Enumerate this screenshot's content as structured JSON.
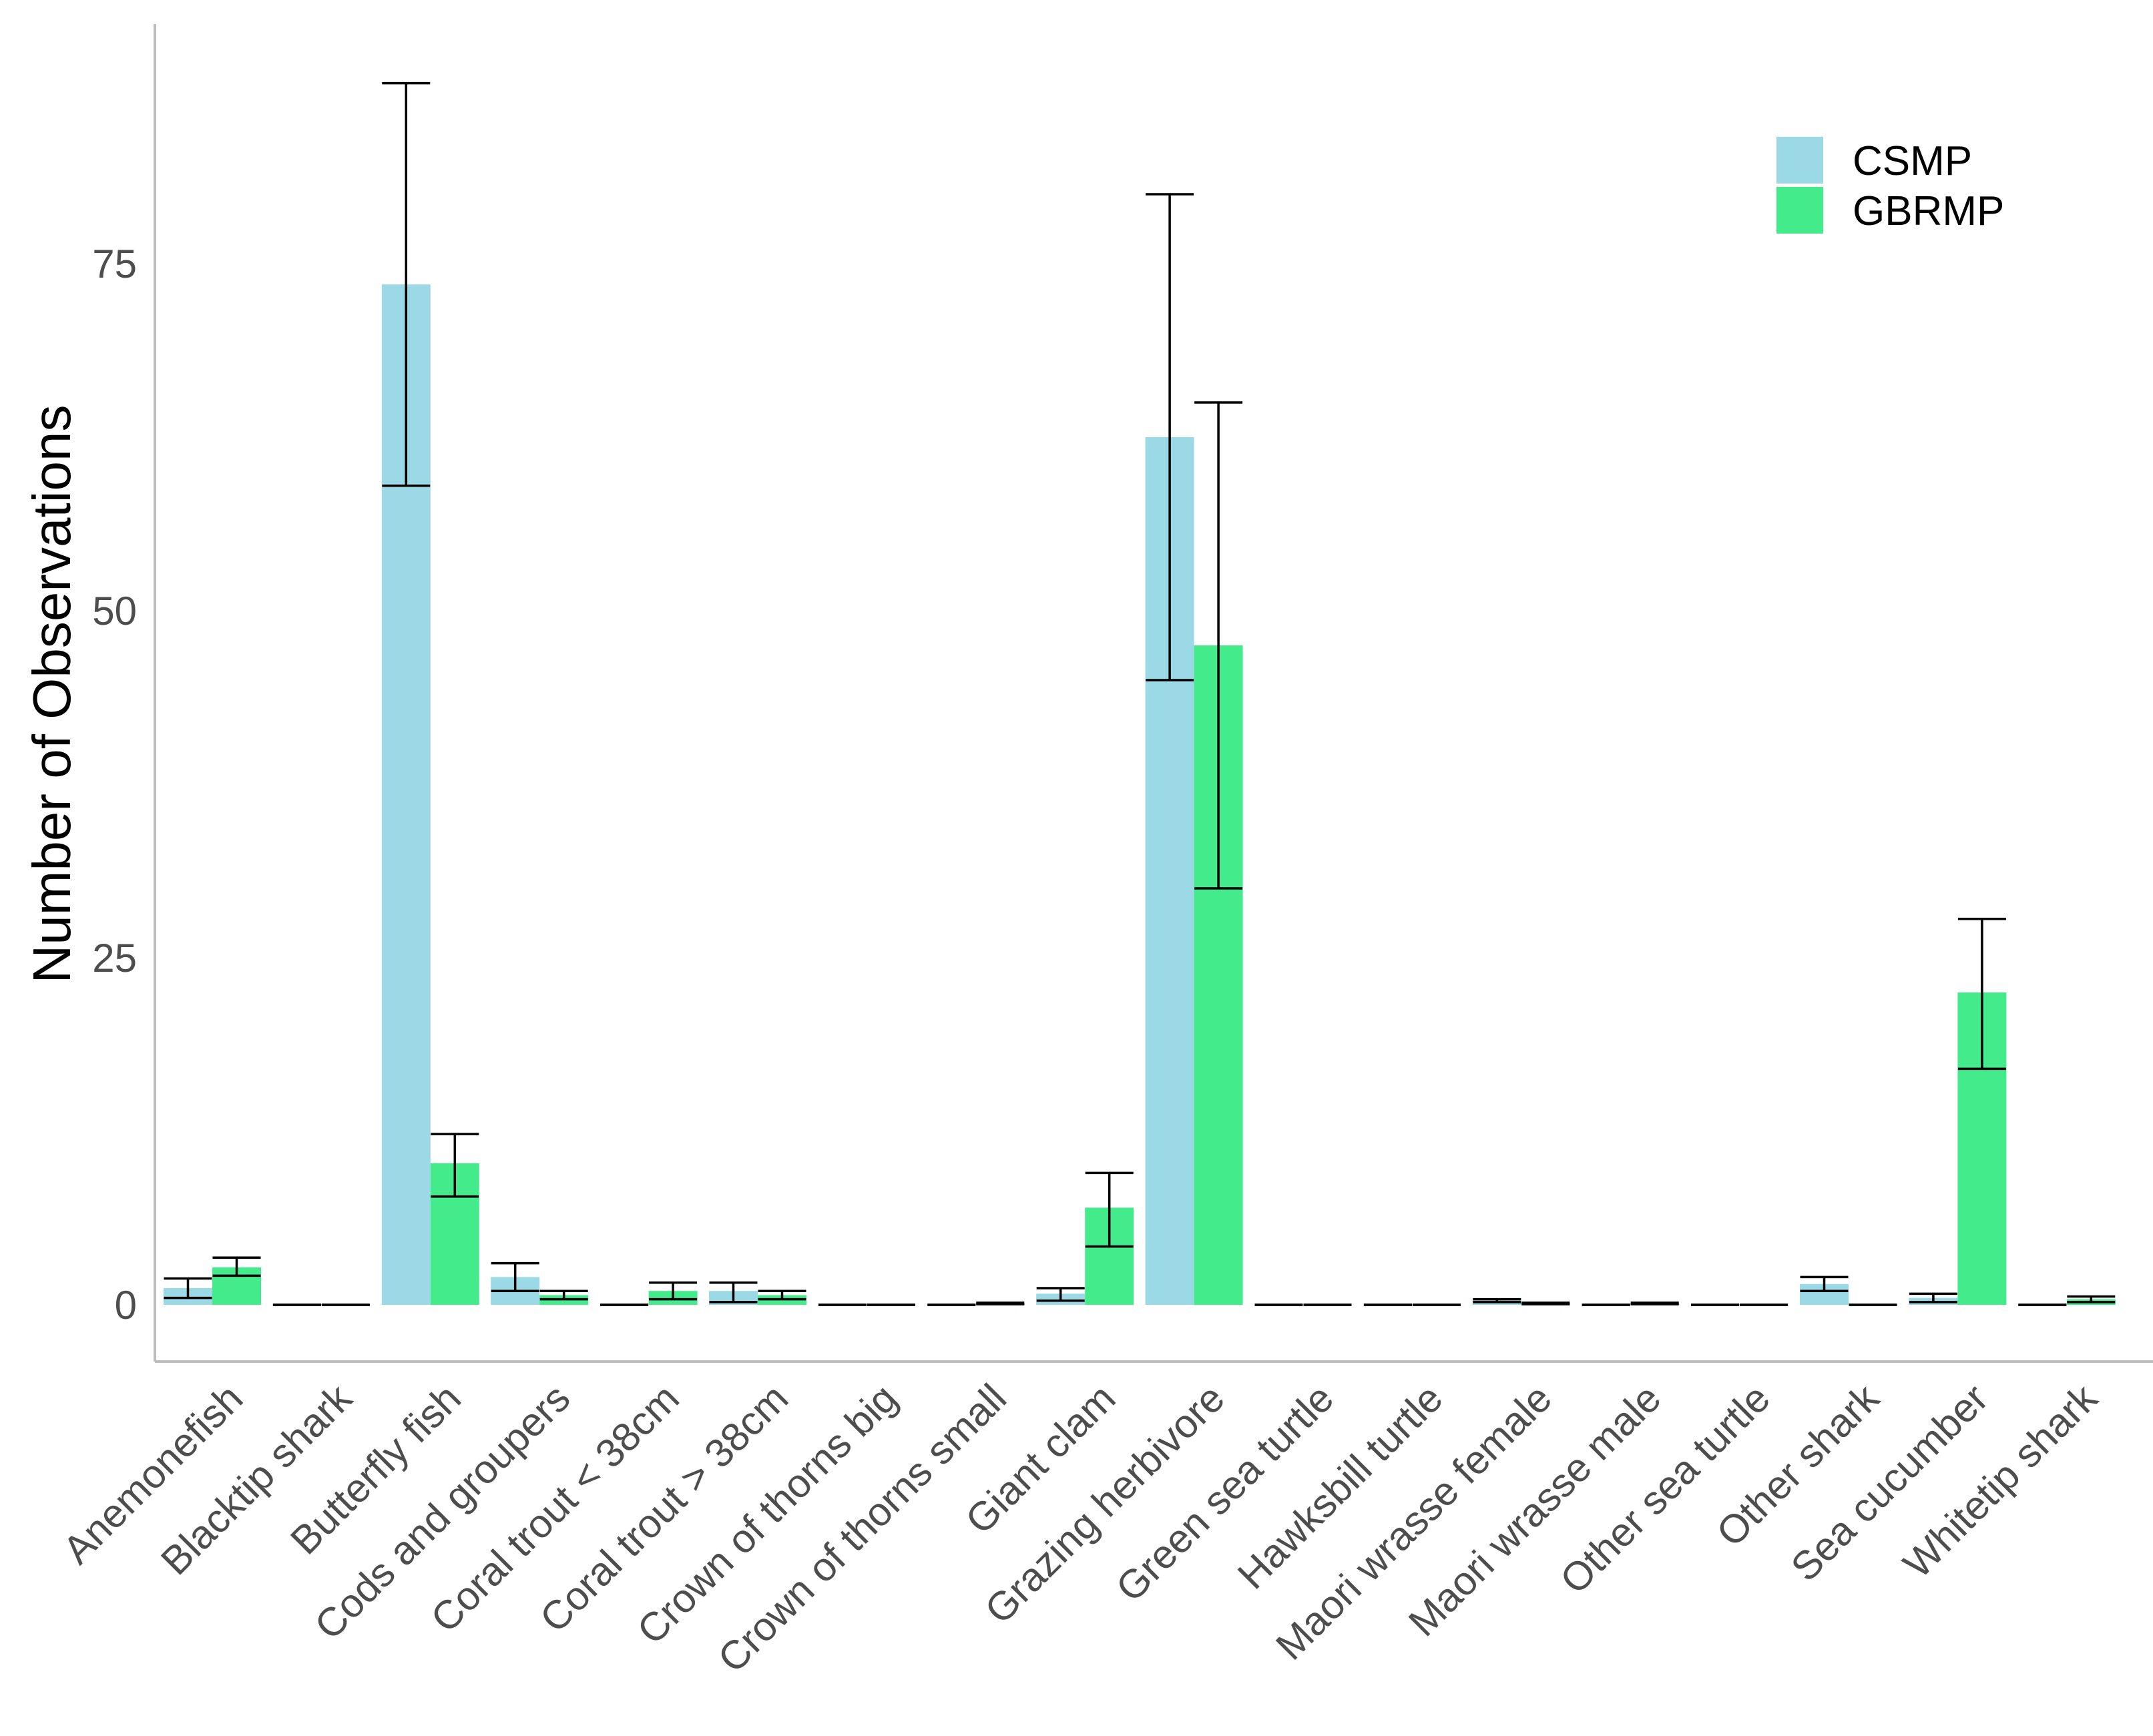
{
  "chart_data": {
    "type": "bar",
    "title": "",
    "xlabel": "",
    "ylabel": "Number of Observations",
    "ylim": [
      -4.2,
      92
    ],
    "yticks": [
      0,
      25,
      50,
      75
    ],
    "grid": false,
    "legend_position": "top-right",
    "categories": [
      "Anemonefish",
      "Blacktip shark",
      "Butterfly fish",
      "Cods and groupers",
      "Coral trout < 38cm",
      "Coral trout > 38cm",
      "Crown of thorns big",
      "Crown of thorns small",
      "Giant clam",
      "Grazing herbivore",
      "Green sea turtle",
      "Hawksbill turtle",
      "Maori wrasse female",
      "Maori wrasse male",
      "Other sea turtle",
      "Other shark",
      "Sea cucumber",
      "Whitetip shark"
    ],
    "series": [
      {
        "name": "CSMP",
        "color": "#9ad9e5",
        "values": [
          1.2,
          0,
          73.5,
          2.0,
          0,
          1.0,
          0,
          0,
          0.8,
          62.5,
          0,
          0,
          0.3,
          0,
          0,
          1.5,
          0.5,
          0
        ],
        "err_low": [
          0.5,
          0,
          59.0,
          1.0,
          0,
          0.2,
          0,
          0,
          0.3,
          45.0,
          0,
          0,
          0.2,
          0,
          0,
          1.0,
          0.2,
          0
        ],
        "err_high": [
          1.9,
          0,
          88.0,
          3.0,
          0,
          1.6,
          0,
          0,
          1.2,
          80.0,
          0,
          0,
          0.4,
          0,
          0,
          2.0,
          0.8,
          0
        ]
      },
      {
        "name": "GBRMP",
        "color": "#44eb8a",
        "values": [
          2.7,
          0,
          10.2,
          0.7,
          1.0,
          0.7,
          0,
          0.1,
          7.0,
          47.5,
          0,
          0,
          0.1,
          0.1,
          0,
          0,
          22.5,
          0.4
        ],
        "err_low": [
          2.1,
          0,
          7.8,
          0.4,
          0.4,
          0.4,
          0,
          0.05,
          4.2,
          30.0,
          0,
          0,
          0.05,
          0.05,
          0,
          0,
          17.0,
          0.2
        ],
        "err_high": [
          3.4,
          0,
          12.3,
          1.0,
          1.6,
          1.0,
          0,
          0.15,
          9.5,
          65.0,
          0,
          0,
          0.15,
          0.15,
          0,
          0,
          27.8,
          0.6
        ]
      }
    ]
  }
}
